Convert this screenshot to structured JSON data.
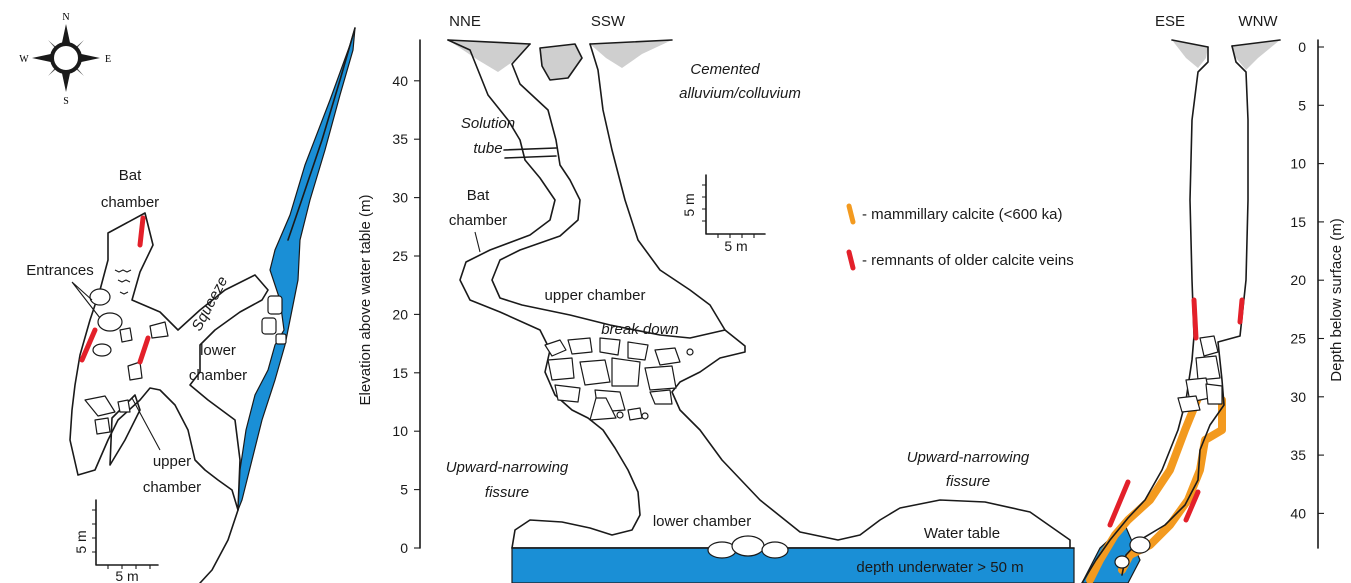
{
  "plan_view": {
    "compass": {
      "n": "N",
      "s": "S",
      "e": "E",
      "w": "W"
    },
    "labels": {
      "bat_chamber_line1": "Bat",
      "bat_chamber_line2": "chamber",
      "entrances": "Entrances",
      "squeeze": "Squeeze",
      "lower_chamber_line1": "lower",
      "lower_chamber_line2": "chamber",
      "upper_chamber_line1": "upper",
      "upper_chamber_line2": "chamber"
    },
    "scale": {
      "vertical": "5 m",
      "horizontal": "5 m"
    }
  },
  "section_ne": {
    "directions": {
      "left": "NNE",
      "right": "SSW"
    },
    "y_axis_label": "Elevation above water table (m)",
    "y_ticks": [
      "0",
      "5",
      "10",
      "15",
      "20",
      "25",
      "30",
      "35",
      "40"
    ],
    "labels": {
      "cemented_line1": "Cemented",
      "cemented_line2": "alluvium/colluvium",
      "solution_line1": "Solution",
      "solution_line2": "tube",
      "bat_line1": "Bat",
      "bat_line2": "chamber",
      "upper_chamber": "upper chamber",
      "break_down": "break down",
      "fissure_left_line1": "Upward-narrowing",
      "fissure_left_line2": "fissure",
      "fissure_right_line1": "Upward-narrowing",
      "fissure_right_line2": "fissure",
      "lower_chamber": "lower chamber",
      "water_table": "Water table",
      "depth_underwater": "depth underwater > 50 m"
    },
    "scale": {
      "vertical": "5 m",
      "horizontal": "5 m"
    }
  },
  "legend": {
    "items": [
      {
        "label": "- mammillary calcite (<600 ka)",
        "color": "#f39a1f"
      },
      {
        "label": "- remnants of older calcite veins",
        "color": "#e3202a"
      }
    ]
  },
  "section_ew": {
    "directions": {
      "left": "ESE",
      "right": "WNW"
    },
    "y_axis_label": "Depth below surface (m)",
    "y_ticks": [
      "0",
      "5",
      "10",
      "15",
      "20",
      "25",
      "30",
      "35",
      "40"
    ]
  },
  "colors": {
    "water": "#1a8fd6",
    "sediment": "#cfcfcf",
    "red_vein": "#e3202a",
    "orange_calcite": "#f39a1f"
  }
}
